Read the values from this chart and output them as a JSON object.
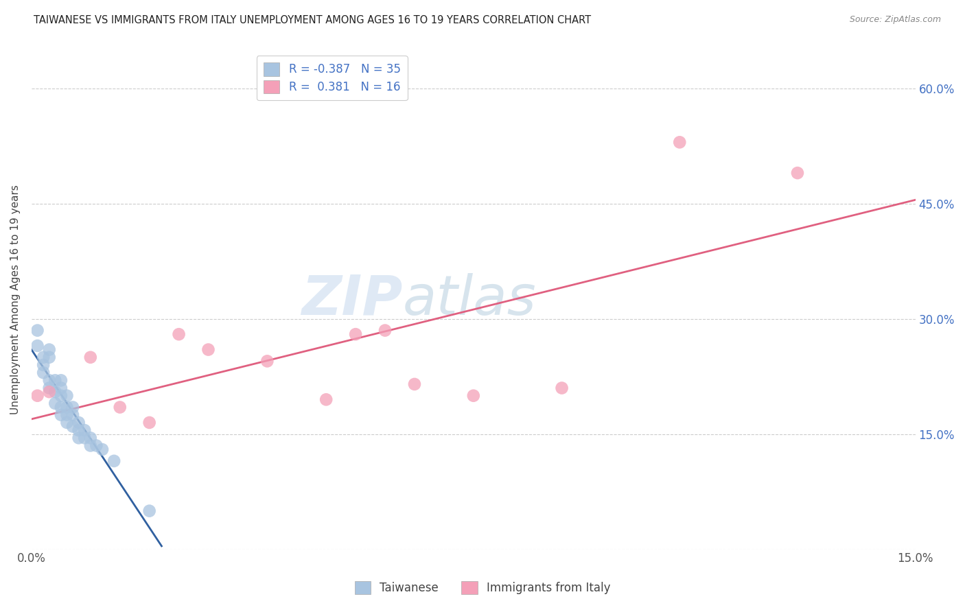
{
  "title": "TAIWANESE VS IMMIGRANTS FROM ITALY UNEMPLOYMENT AMONG AGES 16 TO 19 YEARS CORRELATION CHART",
  "source": "Source: ZipAtlas.com",
  "ylabel": "Unemployment Among Ages 16 to 19 years",
  "xlim": [
    0.0,
    0.15
  ],
  "ylim": [
    0.0,
    0.65
  ],
  "x_ticks": [
    0.0,
    0.03,
    0.06,
    0.09,
    0.12,
    0.15
  ],
  "x_tick_labels": [
    "0.0%",
    "",
    "",
    "",
    "",
    "15.0%"
  ],
  "y_ticks": [
    0.0,
    0.15,
    0.3,
    0.45,
    0.6
  ],
  "y_tick_labels": [
    "",
    "15.0%",
    "30.0%",
    "45.0%",
    "60.0%"
  ],
  "taiwanese_R": -0.387,
  "taiwanese_N": 35,
  "italian_R": 0.381,
  "italian_N": 16,
  "taiwanese_color": "#a8c4e0",
  "italian_color": "#f4a0b8",
  "taiwanese_line_color": "#3060a0",
  "italian_line_color": "#e06080",
  "taiwanese_scatter_x": [
    0.001,
    0.001,
    0.002,
    0.002,
    0.002,
    0.003,
    0.003,
    0.003,
    0.003,
    0.004,
    0.004,
    0.004,
    0.005,
    0.005,
    0.005,
    0.005,
    0.005,
    0.006,
    0.006,
    0.006,
    0.006,
    0.007,
    0.007,
    0.007,
    0.008,
    0.008,
    0.008,
    0.009,
    0.009,
    0.01,
    0.01,
    0.011,
    0.012,
    0.014,
    0.02
  ],
  "taiwanese_scatter_y": [
    0.285,
    0.265,
    0.25,
    0.24,
    0.23,
    0.26,
    0.25,
    0.22,
    0.21,
    0.22,
    0.205,
    0.19,
    0.22,
    0.21,
    0.2,
    0.185,
    0.175,
    0.2,
    0.185,
    0.175,
    0.165,
    0.185,
    0.175,
    0.16,
    0.165,
    0.155,
    0.145,
    0.155,
    0.145,
    0.145,
    0.135,
    0.135,
    0.13,
    0.115,
    0.05
  ],
  "italian_scatter_x": [
    0.001,
    0.003,
    0.01,
    0.015,
    0.02,
    0.025,
    0.03,
    0.04,
    0.05,
    0.055,
    0.06,
    0.065,
    0.075,
    0.09,
    0.11,
    0.13
  ],
  "italian_scatter_y": [
    0.2,
    0.205,
    0.25,
    0.185,
    0.165,
    0.28,
    0.26,
    0.245,
    0.195,
    0.28,
    0.285,
    0.215,
    0.2,
    0.21,
    0.53,
    0.49
  ],
  "watermark_zip": "ZIP",
  "watermark_atlas": "atlas",
  "legend_labels": [
    "Taiwanese",
    "Immigrants from Italy"
  ],
  "grid_color": "#cccccc",
  "background_color": "#ffffff",
  "plot_bg_color": "#ffffff"
}
